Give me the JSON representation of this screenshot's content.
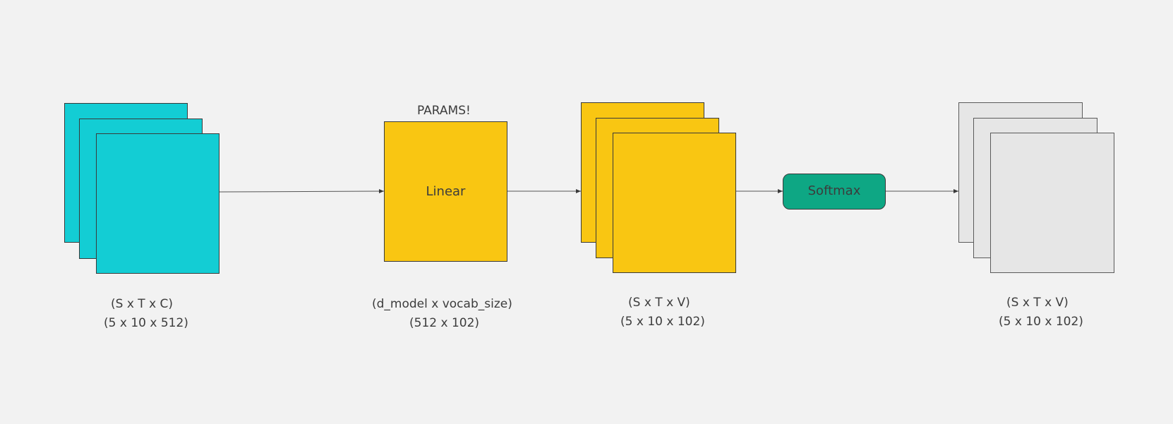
{
  "colors": {
    "background": "#f2f2f2",
    "input_tensor": "#13cdd4",
    "linear": "#f9c612",
    "logits": "#f9c612",
    "softmax": "#0ea784",
    "output": "#e6e6e6",
    "stroke": "#3a3a3a"
  },
  "input": {
    "shape": "(S x T x C)",
    "dims": "(5 x 10 x 512)"
  },
  "linear": {
    "header": "PARAMS!",
    "label": "Linear",
    "shape": "(d_model x vocab_size)",
    "dims": "(512 x 102)"
  },
  "logits": {
    "shape": "(S x T x V)",
    "dims": "(5 x 10 x 102)"
  },
  "softmax": {
    "label": "Softmax"
  },
  "output": {
    "shape": "(S x T x V)",
    "dims": "(5 x 10 x 102)"
  }
}
